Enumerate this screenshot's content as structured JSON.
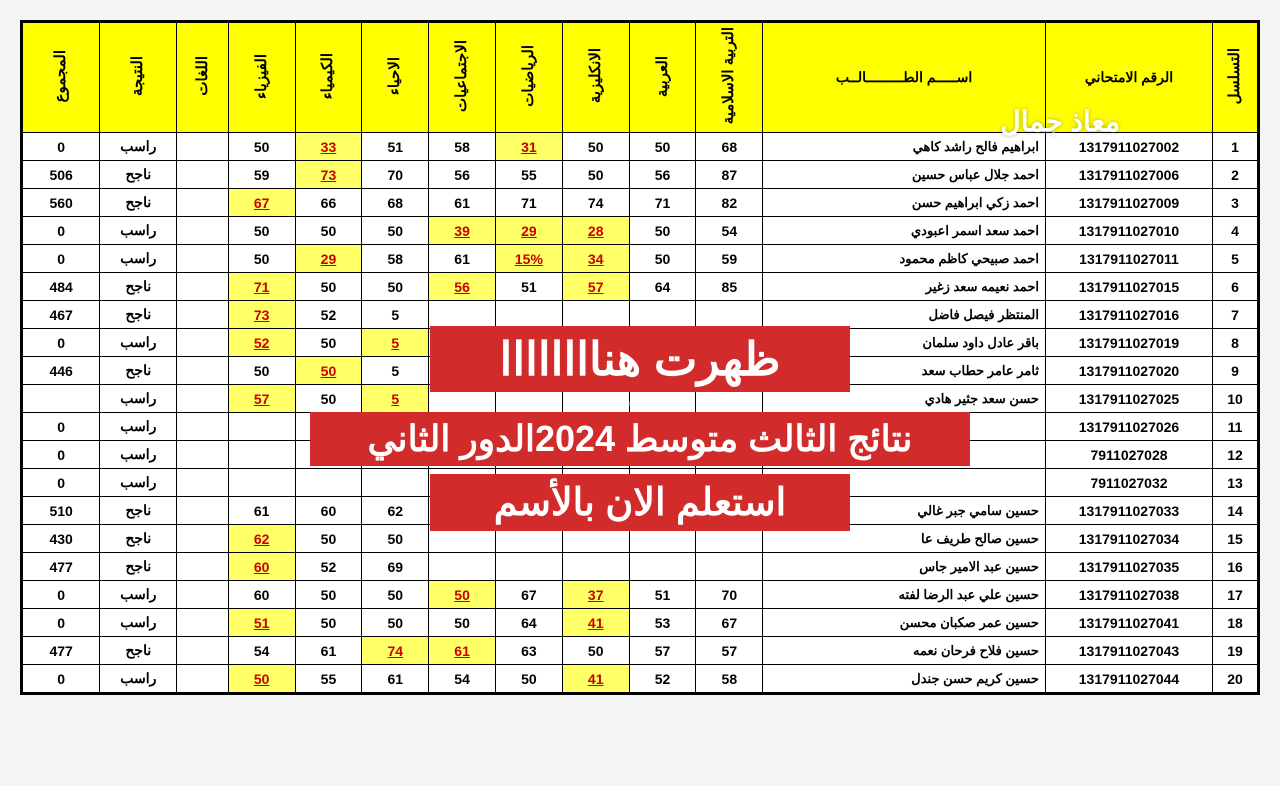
{
  "watermark": "معاذ جمال",
  "overlay": {
    "line1": "ظهرت هناااااااا",
    "sub": "معاذجمال",
    "line2": "نتائج الثالث متوسط 2024الدور الثاني",
    "line3": "استعلم الان بالأسم"
  },
  "headers": {
    "seq": "التسلسل",
    "exam": "الرقم الامتحاني",
    "name": "اســـــم الطـــــــــالــب",
    "islamic": "التربية الاسلامية",
    "arabic": "العربية",
    "english": "الانكليزية",
    "math": "الرياضيات",
    "social": "الاجتماعيات",
    "bio": "الاحياء",
    "chem": "الكيمياء",
    "phys": "الفيزياء",
    "lang": "اللغات",
    "result": "النتيجة",
    "total": "المجموع"
  },
  "rows": [
    {
      "seq": 1,
      "exam": "1317911027002",
      "name": "ابراهيم فالح راشد كاهي",
      "islamic": "68",
      "arabic": "50",
      "english": "50",
      "math": "31",
      "math_hl": true,
      "social": "58",
      "bio": "51",
      "chem": "33",
      "chem_hl": true,
      "phys": "50",
      "lang": "",
      "result": "راسب",
      "total": "0"
    },
    {
      "seq": 2,
      "exam": "1317911027006",
      "name": "احمد جلال عباس حسين",
      "islamic": "87",
      "arabic": "56",
      "english": "50",
      "math": "55",
      "social": "56",
      "bio": "70",
      "chem": "73",
      "chem_hl": true,
      "phys": "59",
      "lang": "",
      "result": "ناجح",
      "total": "506"
    },
    {
      "seq": 3,
      "exam": "1317911027009",
      "name": "احمد زكي ابراهيم حسن",
      "islamic": "82",
      "arabic": "71",
      "english": "74",
      "math": "71",
      "social": "61",
      "bio": "68",
      "chem": "66",
      "phys": "67",
      "phys_hl": true,
      "lang": "",
      "result": "ناجح",
      "total": "560"
    },
    {
      "seq": 4,
      "exam": "1317911027010",
      "name": "احمد سعد اسمر اعبودي",
      "islamic": "54",
      "arabic": "50",
      "english": "28",
      "english_hl": true,
      "math": "29",
      "math_hl": true,
      "social": "39",
      "social_hl": true,
      "bio": "50",
      "chem": "50",
      "phys": "50",
      "lang": "",
      "result": "راسب",
      "total": "0"
    },
    {
      "seq": 5,
      "exam": "1317911027011",
      "name": "احمد صبيحي كاظم محمود",
      "islamic": "59",
      "arabic": "50",
      "english": "34",
      "english_hl": true,
      "math": "15%",
      "math_hl": true,
      "social": "61",
      "bio": "58",
      "chem": "29",
      "chem_hl": true,
      "phys": "50",
      "lang": "",
      "result": "راسب",
      "total": "0"
    },
    {
      "seq": 6,
      "exam": "1317911027015",
      "name": "احمد نعيمه سعد زغير",
      "islamic": "85",
      "arabic": "64",
      "english": "57",
      "english_hl": true,
      "math": "51",
      "social": "56",
      "social_hl": true,
      "bio": "50",
      "chem": "50",
      "phys": "71",
      "phys_hl": true,
      "lang": "",
      "result": "ناجح",
      "total": "484"
    },
    {
      "seq": 7,
      "exam": "1317911027016",
      "name": "المنتظر فيصل فاضل",
      "islamic": "",
      "arabic": "",
      "english": "",
      "math": "",
      "social": "",
      "bio": "5",
      "chem": "52",
      "phys": "73",
      "phys_hl": true,
      "lang": "",
      "result": "ناجح",
      "total": "467"
    },
    {
      "seq": 8,
      "exam": "1317911027019",
      "name": "باقر عادل داود سلمان",
      "islamic": "",
      "arabic": "",
      "english": "",
      "math": "",
      "social": "",
      "bio": "5",
      "bio_hl": true,
      "chem": "50",
      "phys": "52",
      "phys_hl": true,
      "lang": "",
      "result": "راسب",
      "total": "0"
    },
    {
      "seq": 9,
      "exam": "1317911027020",
      "name": "ثامر عامر حطاب سعد",
      "islamic": "",
      "arabic": "",
      "english": "",
      "math": "",
      "social": "",
      "bio": "5",
      "chem": "50",
      "chem_hl": true,
      "phys": "50",
      "lang": "",
      "result": "ناجح",
      "total": "446"
    },
    {
      "seq": 10,
      "exam": "1317911027025",
      "name": "حسن سعد جثير هادي",
      "islamic": "",
      "arabic": "",
      "english": "",
      "math": "",
      "social": "",
      "bio": "5",
      "bio_hl": true,
      "chem": "50",
      "phys": "57",
      "phys_hl": true,
      "lang": "",
      "result": "راسب",
      "total": ""
    },
    {
      "seq": 11,
      "exam": "1317911027026",
      "name": "",
      "islamic": "",
      "arabic": "",
      "english": "",
      "math": "",
      "social": "",
      "bio": "",
      "chem": "",
      "phys": "",
      "lang": "",
      "result": "راسب",
      "total": "0"
    },
    {
      "seq": 12,
      "exam": "7911027028",
      "name": "",
      "islamic": "",
      "arabic": "",
      "english": "",
      "math": "",
      "social": "",
      "bio": "",
      "chem": "",
      "phys": "",
      "lang": "",
      "result": "راسب",
      "total": "0"
    },
    {
      "seq": 13,
      "exam": "7911027032",
      "name": "",
      "islamic": "",
      "arabic": "",
      "english": "",
      "math": "",
      "social": "",
      "bio": "",
      "chem": "",
      "phys": "",
      "lang": "",
      "result": "راسب",
      "total": "0"
    },
    {
      "seq": 14,
      "exam": "1317911027033",
      "name": "حسين سامي جبر غالي",
      "islamic": "",
      "arabic": "",
      "english": "",
      "math": "",
      "social": "",
      "bio": "62",
      "chem": "60",
      "phys": "61",
      "lang": "",
      "result": "ناجح",
      "total": "510"
    },
    {
      "seq": 15,
      "exam": "1317911027034",
      "name": "حسين صالح طريف عا",
      "islamic": "",
      "arabic": "",
      "english": "",
      "math": "",
      "social": "",
      "bio": "50",
      "chem": "50",
      "phys": "62",
      "phys_hl": true,
      "lang": "",
      "result": "ناجح",
      "total": "430"
    },
    {
      "seq": 16,
      "exam": "1317911027035",
      "name": "حسين عبد الامير جاس",
      "islamic": "",
      "arabic": "",
      "english": "",
      "math": "",
      "social": "",
      "bio": "69",
      "chem": "52",
      "phys": "60",
      "phys_hl": true,
      "lang": "",
      "result": "ناجح",
      "total": "477"
    },
    {
      "seq": 17,
      "exam": "1317911027038",
      "name": "حسين علي عبد الرضا لفته",
      "islamic": "70",
      "arabic": "51",
      "english": "37",
      "english_hl": true,
      "math": "67",
      "social": "50",
      "social_hl": true,
      "bio": "50",
      "chem": "50",
      "phys": "60",
      "lang": "",
      "result": "راسب",
      "total": "0"
    },
    {
      "seq": 18,
      "exam": "1317911027041",
      "name": "حسين عمر صكبان محسن",
      "islamic": "67",
      "arabic": "53",
      "english": "41",
      "english_hl": true,
      "math": "64",
      "social": "50",
      "bio": "50",
      "chem": "50",
      "phys": "51",
      "phys_hl": true,
      "lang": "",
      "result": "راسب",
      "total": "0"
    },
    {
      "seq": 19,
      "exam": "1317911027043",
      "name": "حسين فلاح فرحان نعمه",
      "islamic": "57",
      "arabic": "57",
      "english": "50",
      "math": "63",
      "social": "61",
      "social_hl": true,
      "bio": "74",
      "bio_hl": true,
      "chem": "61",
      "phys": "54",
      "lang": "",
      "result": "ناجح",
      "total": "477"
    },
    {
      "seq": 20,
      "exam": "1317911027044",
      "name": "حسين كريم حسن جندل",
      "islamic": "58",
      "arabic": "52",
      "english": "41",
      "english_hl": true,
      "math": "50",
      "social": "54",
      "bio": "61",
      "chem": "55",
      "phys": "50",
      "phys_hl": true,
      "lang": "",
      "result": "راسب",
      "total": "0"
    }
  ]
}
